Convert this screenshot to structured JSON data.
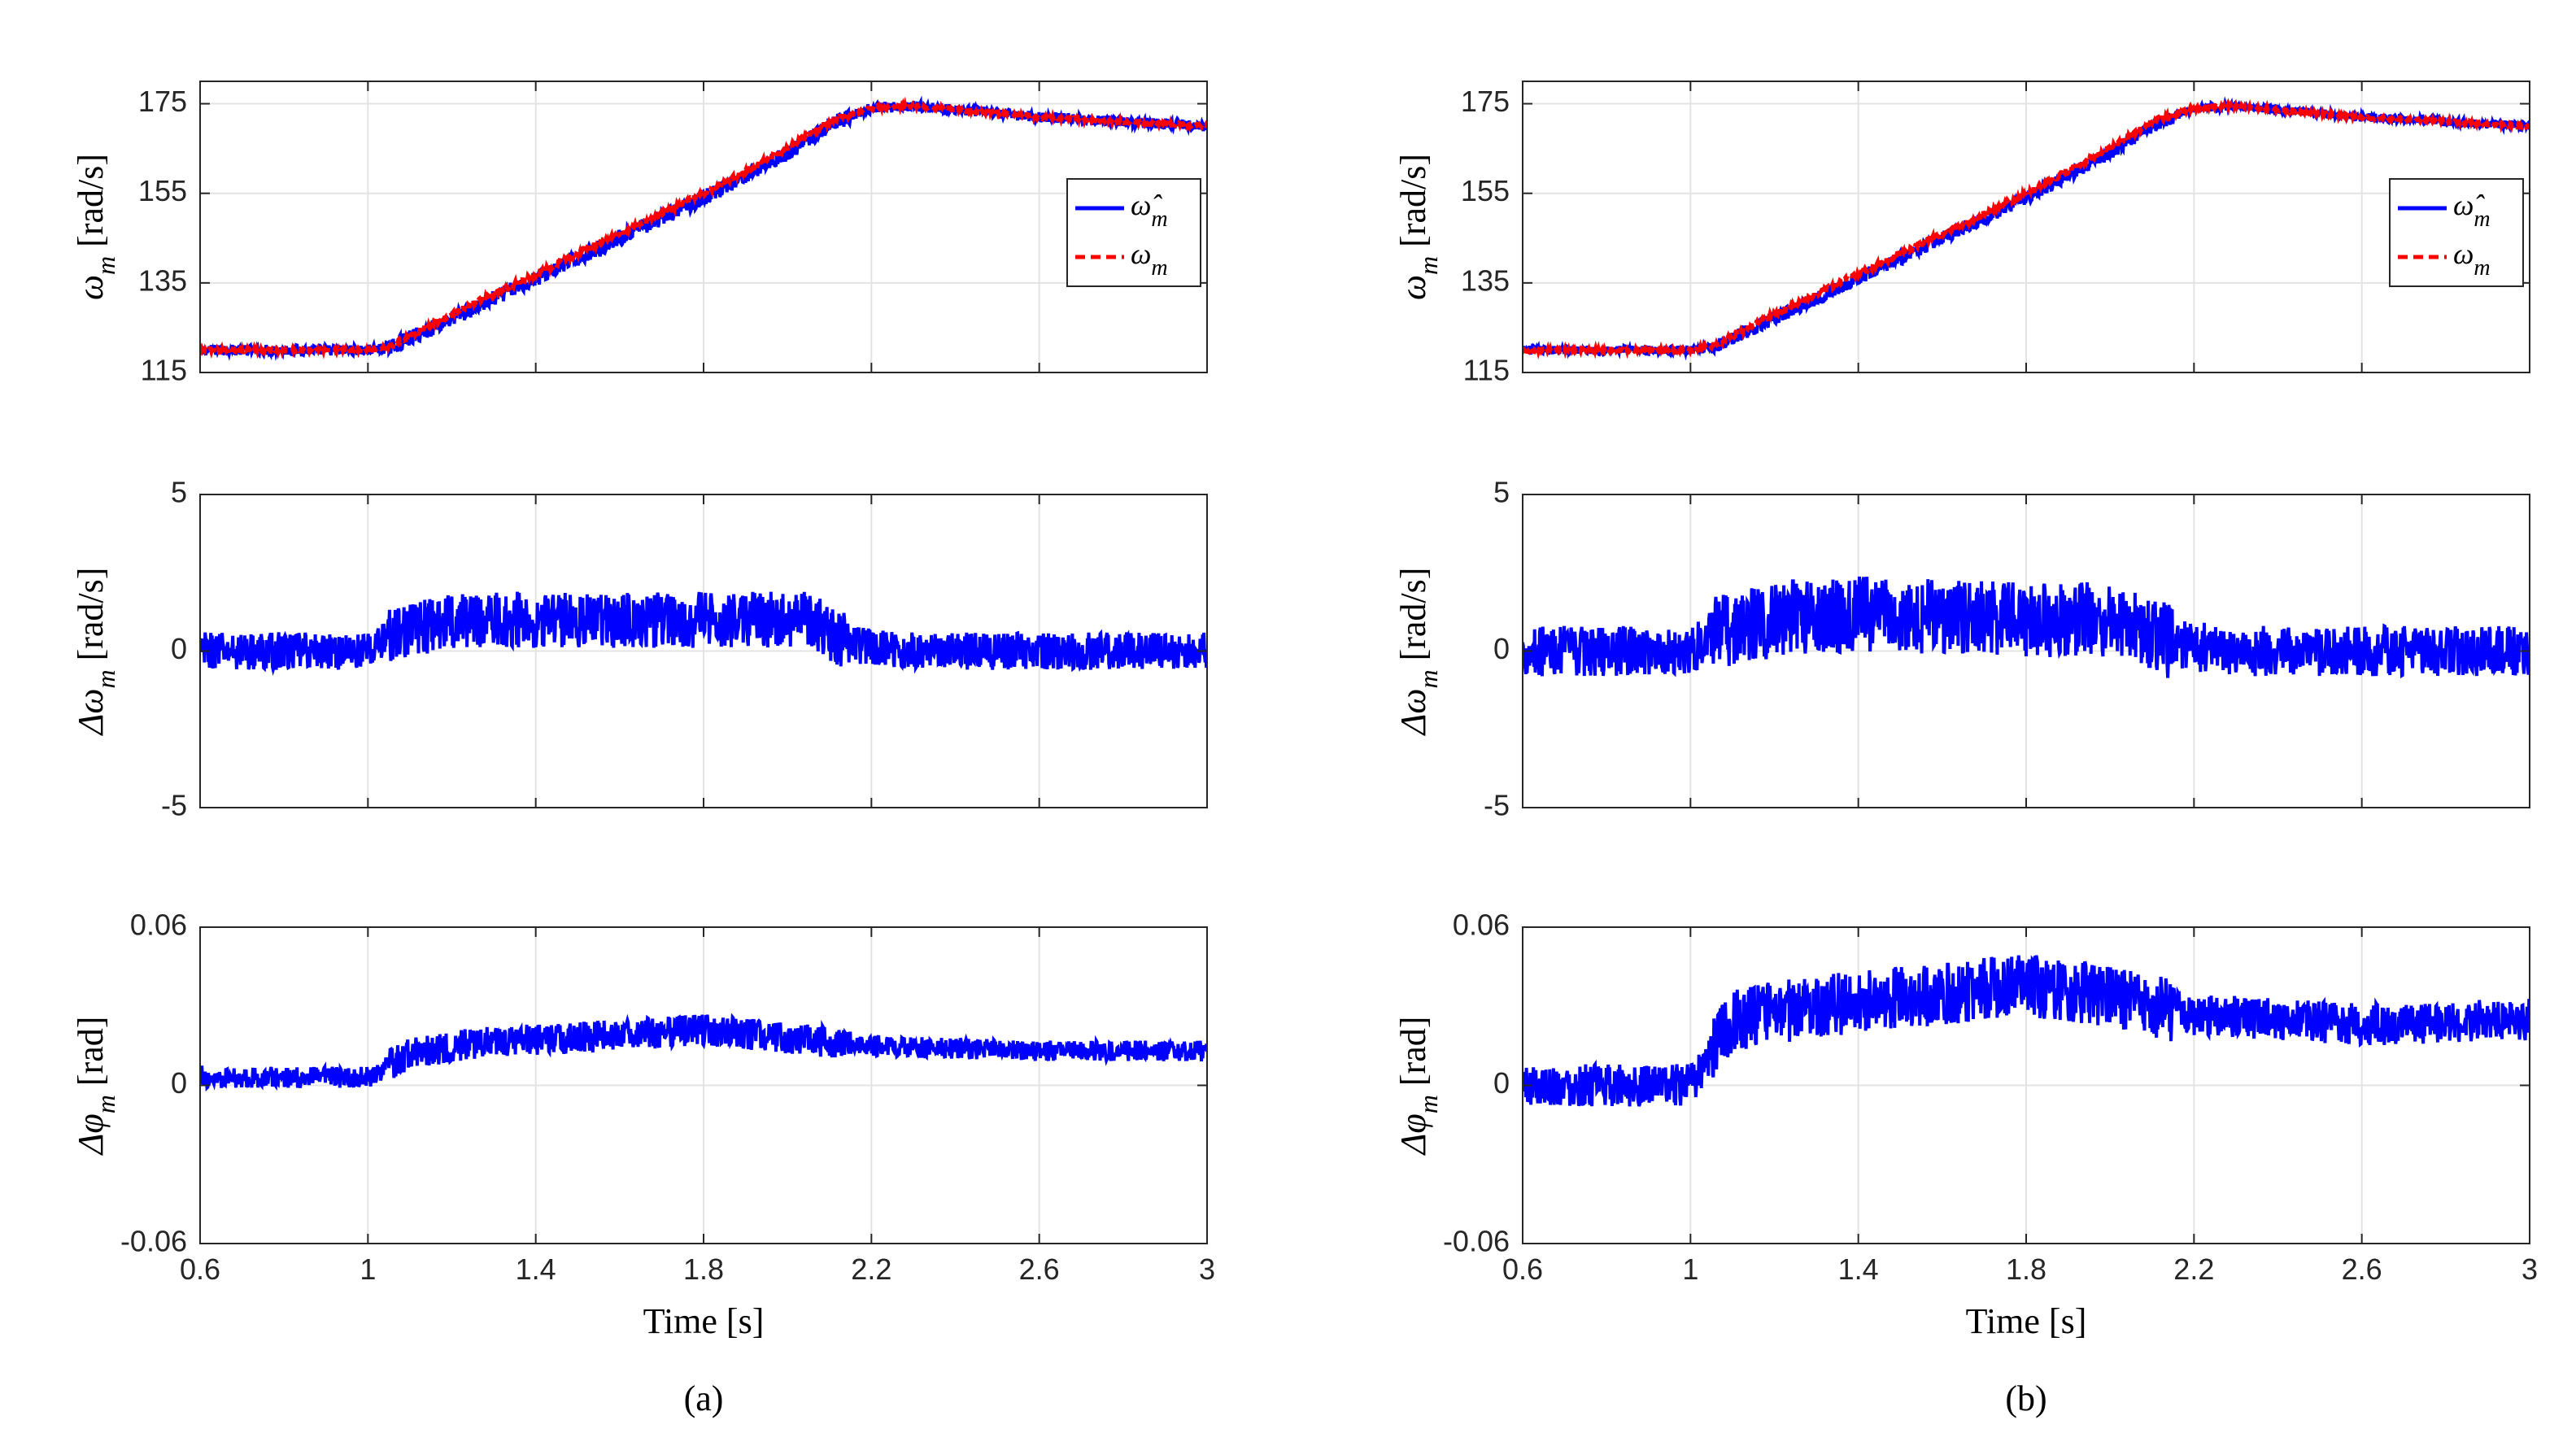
{
  "chart_data": [
    {
      "type": "line",
      "panel": "a",
      "caption": "(a)",
      "xlabel": "Time [s]",
      "x_ticks": [
        "0.6",
        "1",
        "1.4",
        "1.8",
        "2.2",
        "2.6",
        "3"
      ],
      "xlim": [
        0.6,
        3.0
      ],
      "grid": true,
      "subplots": [
        {
          "ylabel": "ω_m [rad/s]",
          "ylim": [
            115,
            180
          ],
          "y_ticks": [
            "115",
            "135",
            "155",
            "175"
          ],
          "y_tick_values": [
            115,
            135,
            155,
            175
          ],
          "legend": {
            "position": "right",
            "entries": [
              "ω̂_m",
              "ω_m"
            ]
          },
          "series": [
            {
              "name": "ω̂_m",
              "color": "#0000ff",
              "style": "solid",
              "x": [
                0.6,
                1.0,
                1.05,
                1.2,
                1.4,
                1.6,
                1.8,
                2.0,
                2.1,
                2.2,
                2.3,
                2.6,
                3.0
              ],
              "y": [
                120,
                120,
                120.5,
                127,
                136,
                145,
                154,
                164,
                170,
                174,
                174.5,
                172,
                170
              ],
              "noise": 1.2
            },
            {
              "name": "ω_m",
              "color": "#ff0000",
              "style": "dashed",
              "x": [
                0.6,
                1.0,
                1.05,
                1.2,
                1.4,
                1.6,
                1.8,
                2.0,
                2.1,
                2.2,
                2.3,
                2.6,
                3.0
              ],
              "y": [
                120,
                120,
                120.8,
                128,
                137,
                146,
                155,
                165,
                171,
                174,
                174.5,
                172,
                170
              ],
              "noise": 0.4
            }
          ]
        },
        {
          "ylabel": "Δω_m [rad/s]",
          "ylim": [
            -5,
            5
          ],
          "y_ticks": [
            "-5",
            "0",
            "5"
          ],
          "y_tick_values": [
            -5,
            0,
            5
          ],
          "series": [
            {
              "name": "",
              "color": "#0000ff",
              "style": "solid",
              "x": [
                0.6,
                1.0,
                1.05,
                1.2,
                1.4,
                1.8,
                2.05,
                2.15,
                2.3,
                2.72,
                3.0
              ],
              "y": [
                0,
                0,
                0.5,
                1.0,
                1.0,
                1.0,
                1.0,
                0.2,
                0,
                0,
                0
              ],
              "noise": 0.6
            }
          ]
        },
        {
          "ylabel": "Δφ_m [rad]",
          "ylim": [
            -0.06,
            0.06
          ],
          "y_ticks": [
            "-0.06",
            "0",
            "0.06"
          ],
          "y_tick_values": [
            -0.06,
            0,
            0.06
          ],
          "series": [
            {
              "name": "",
              "color": "#0000ff",
              "style": "solid",
              "x": [
                0.6,
                1.0,
                1.1,
                1.3,
                1.5,
                1.8,
                2.0,
                2.2,
                2.6,
                3.0
              ],
              "y": [
                0.003,
                0.003,
                0.012,
                0.017,
                0.018,
                0.021,
                0.018,
                0.015,
                0.013,
                0.013
              ],
              "noise": 0.004
            }
          ]
        }
      ]
    },
    {
      "type": "line",
      "panel": "b",
      "caption": "(b)",
      "xlabel": "Time [s]",
      "x_ticks": [
        "0.6",
        "1",
        "1.4",
        "1.8",
        "2.2",
        "2.6",
        "3"
      ],
      "xlim": [
        0.6,
        3.0
      ],
      "grid": true,
      "subplots": [
        {
          "ylabel": "ω_m [rad/s]",
          "ylim": [
            115,
            180
          ],
          "y_ticks": [
            "115",
            "135",
            "155",
            "175"
          ],
          "y_tick_values": [
            115,
            135,
            155,
            175
          ],
          "legend": {
            "position": "right",
            "entries": [
              "ω̂_m",
              "ω_m"
            ]
          },
          "series": [
            {
              "name": "ω̂_m",
              "color": "#0000ff",
              "style": "solid",
              "x": [
                0.6,
                1.0,
                1.05,
                1.2,
                1.4,
                1.6,
                1.8,
                2.0,
                2.1,
                2.2,
                2.3,
                2.6,
                3.0
              ],
              "y": [
                120,
                120,
                120.5,
                127,
                136,
                145,
                154,
                164,
                170,
                174,
                174.5,
                172,
                170
              ],
              "noise": 1.0
            },
            {
              "name": "ω_m",
              "color": "#ff0000",
              "style": "dashed",
              "x": [
                0.6,
                1.0,
                1.05,
                1.2,
                1.4,
                1.6,
                1.8,
                2.0,
                2.1,
                2.2,
                2.3,
                2.6,
                3.0
              ],
              "y": [
                120,
                120,
                120.8,
                128,
                137,
                146,
                155,
                165,
                171,
                174,
                174.5,
                172,
                170
              ],
              "noise": 0.4
            }
          ]
        },
        {
          "ylabel": "Δω_m [rad/s]",
          "ylim": [
            -5,
            5
          ],
          "y_ticks": [
            "-5",
            "0",
            "5"
          ],
          "y_tick_values": [
            -5,
            0,
            5
          ],
          "series": [
            {
              "name": "",
              "color": "#0000ff",
              "style": "solid",
              "x": [
                0.6,
                1.0,
                1.05,
                1.2,
                1.4,
                1.8,
                2.05,
                2.15,
                2.3,
                2.72,
                3.0
              ],
              "y": [
                0,
                0,
                0.5,
                1.0,
                1.2,
                1.0,
                1.0,
                0.2,
                0,
                0,
                0
              ],
              "noise": 0.8
            }
          ]
        },
        {
          "ylabel": "Δφ_m [rad]",
          "ylim": [
            -0.06,
            0.06
          ],
          "y_ticks": [
            "-0.06",
            "0",
            "0.06"
          ],
          "y_tick_values": [
            -0.06,
            0,
            0.06
          ],
          "series": [
            {
              "name": "",
              "color": "#0000ff",
              "style": "solid",
              "x": [
                0.6,
                1.0,
                1.1,
                1.3,
                1.5,
                1.8,
                2.0,
                2.2,
                2.6,
                3.0
              ],
              "y": [
                0.0,
                0.0,
                0.025,
                0.03,
                0.033,
                0.038,
                0.033,
                0.027,
                0.023,
                0.025
              ],
              "noise": 0.008
            }
          ]
        }
      ]
    }
  ]
}
